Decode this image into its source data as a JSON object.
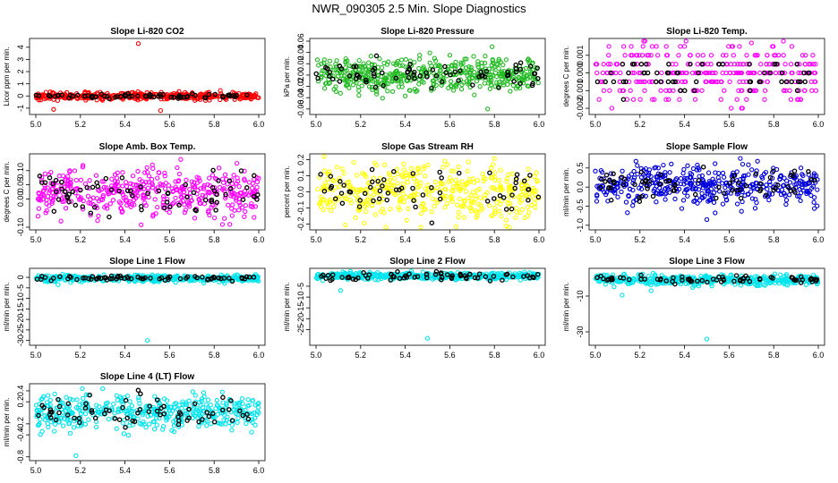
{
  "figure": {
    "title": "NWR_090305  2.5 Min. Slope Diagnostics"
  },
  "chart_data": [
    {
      "type": "scatter",
      "title": "Slope Li-820 CO2",
      "xlabel": "",
      "ylabel": "Licor ppm per min.",
      "xlim": [
        5.0,
        6.0
      ],
      "ylim": [
        -1.3,
        4.5
      ],
      "x_ticks": [
        "5.0",
        "5.2",
        "5.4",
        "5.6",
        "5.8",
        "6.0"
      ],
      "y_ticks": [
        "-1",
        "0",
        "1",
        "2",
        "3",
        "4"
      ],
      "color": "#ff0000",
      "series": [
        {
          "name": "all",
          "center": 0.0,
          "spread": 0.15,
          "count": 420
        },
        {
          "name": "black",
          "center": 0.0,
          "spread": 0.1,
          "count": 70
        }
      ],
      "outliers": [
        [
          5.46,
          4.3
        ],
        [
          5.08,
          -1.1
        ],
        [
          5.56,
          -1.2
        ]
      ]
    },
    {
      "type": "scatter",
      "title": "Slope Li-820 Pressure",
      "xlabel": "",
      "ylabel": "kPa per min.",
      "xlim": [
        5.0,
        6.0
      ],
      "ylim": [
        -0.065,
        0.06
      ],
      "x_ticks": [
        "5.0",
        "5.2",
        "5.4",
        "5.6",
        "5.8",
        "6.0"
      ],
      "y_ticks": [
        "-0.06",
        "-0.04",
        "-0.02",
        "0.00",
        "0.02",
        "0.04",
        "0.06"
      ],
      "color": "#22bb22",
      "series": [
        {
          "name": "all",
          "center": 0.0,
          "spread": 0.015,
          "count": 480
        },
        {
          "name": "black",
          "center": 0.0,
          "spread": 0.012,
          "count": 75
        }
      ],
      "outliers": [
        [
          5.77,
          -0.06
        ],
        [
          5.79,
          0.05
        ]
      ]
    },
    {
      "type": "scatter",
      "title": "Slope Li-820 Temp.",
      "xlabel": "",
      "ylabel": "degrees C per min.",
      "xlim": [
        5.0,
        6.0
      ],
      "ylim": [
        -0.0022,
        0.0018
      ],
      "x_ticks": [
        "5.0",
        "5.2",
        "5.4",
        "5.6",
        "5.8",
        "6.0"
      ],
      "y_ticks": [
        "-0.002",
        "-0.001",
        "0.000",
        "0.001"
      ],
      "color": "#ff00ff",
      "series": [
        {
          "name": "all",
          "center": 0.0,
          "spread": 0.0008,
          "count": 300,
          "quantized": 0.0005
        },
        {
          "name": "black",
          "center": 0.0,
          "spread": 0.0005,
          "count": 60,
          "quantized": 0.0005
        }
      ],
      "outliers": [
        [
          5.7,
          0.0017
        ],
        [
          5.66,
          -0.002
        ]
      ]
    },
    {
      "type": "scatter",
      "title": "Slope Amb. Box Temp.",
      "xlabel": "",
      "ylabel": "degrees C per min.",
      "xlim": [
        5.0,
        6.0
      ],
      "ylim": [
        -0.1,
        0.15
      ],
      "x_ticks": [
        "5.0",
        "5.2",
        "5.4",
        "5.6",
        "5.8",
        "6.0"
      ],
      "y_ticks": [
        "-0.10",
        "0.00",
        "0.05",
        "0.10"
      ],
      "color": "#ff00ff",
      "series": [
        {
          "name": "all",
          "center": 0.02,
          "spread": 0.04,
          "count": 420
        },
        {
          "name": "black",
          "center": 0.02,
          "spread": 0.035,
          "count": 70
        }
      ],
      "outliers": [
        [
          5.65,
          0.14
        ],
        [
          5.87,
          -0.09
        ]
      ]
    },
    {
      "type": "scatter",
      "title": "Slope Gas Stream RH",
      "xlabel": "",
      "ylabel": "percent per min.",
      "xlim": [
        5.0,
        6.0
      ],
      "ylim": [
        -0.22,
        0.22
      ],
      "x_ticks": [
        "5.0",
        "5.2",
        "5.4",
        "5.6",
        "5.8",
        "6.0"
      ],
      "y_ticks": [
        "-0.2",
        "-0.1",
        "0.0",
        "0.1",
        "0.2"
      ],
      "color": "#ffff00",
      "series": [
        {
          "name": "all",
          "center": 0.0,
          "spread": 0.09,
          "count": 400
        },
        {
          "name": "black",
          "center": 0.0,
          "spread": 0.08,
          "count": 60
        }
      ],
      "outliers": []
    },
    {
      "type": "scatter",
      "title": "Slope Sample Flow",
      "xlabel": "",
      "ylabel": "ml/min per min.",
      "xlim": [
        5.0,
        6.0
      ],
      "ylim": [
        -1.05,
        0.8
      ],
      "x_ticks": [
        "5.0",
        "5.2",
        "5.4",
        "5.6",
        "5.8",
        "6.0"
      ],
      "y_ticks": [
        "-1.0",
        "-0.5",
        "0.0",
        "0.5"
      ],
      "color": "#0000dd",
      "series": [
        {
          "name": "all",
          "center": 0.05,
          "spread": 0.25,
          "count": 420
        },
        {
          "name": "black",
          "center": 0.05,
          "spread": 0.2,
          "count": 70
        }
      ],
      "outliers": [
        [
          5.65,
          0.75
        ],
        [
          5.5,
          -0.85
        ]
      ]
    },
    {
      "type": "scatter",
      "title": "Slope Line 1 Flow",
      "xlabel": "",
      "ylabel": "ml/min per min.",
      "xlim": [
        5.0,
        6.0
      ],
      "ylim": [
        -31,
        3
      ],
      "x_ticks": [
        "5.0",
        "5.2",
        "5.4",
        "5.6",
        "5.8",
        "6.0"
      ],
      "y_ticks": [
        "-30",
        "-25",
        "-20",
        "-15",
        "-10",
        "-5",
        "0"
      ],
      "color": "#00e5ee",
      "series": [
        {
          "name": "all",
          "center": -0.5,
          "spread": 0.8,
          "count": 420
        },
        {
          "name": "black",
          "center": -0.3,
          "spread": 0.5,
          "count": 70
        }
      ],
      "outliers": [
        [
          5.5,
          -30
        ],
        [
          5.1,
          -3.5
        ]
      ]
    },
    {
      "type": "scatter",
      "title": "Slope Line 2 Flow",
      "xlabel": "",
      "ylabel": "ml/min per min.",
      "xlim": [
        5.0,
        6.0
      ],
      "ylim": [
        -31,
        2
      ],
      "x_ticks": [
        "5.0",
        "5.2",
        "5.4",
        "5.6",
        "5.8",
        "6.0"
      ],
      "y_ticks": [
        "-25",
        "-20",
        "-15",
        "-10",
        "-5"
      ],
      "color": "#00e5ee",
      "series": [
        {
          "name": "all",
          "center": -0.3,
          "spread": 0.8,
          "count": 420
        },
        {
          "name": "black",
          "center": -0.5,
          "spread": 0.9,
          "count": 70
        }
      ],
      "outliers": [
        [
          5.5,
          -29
        ],
        [
          5.11,
          -7
        ]
      ]
    },
    {
      "type": "scatter",
      "title": "Slope Line 3 Flow",
      "xlabel": "",
      "ylabel": "ml/min per min.",
      "xlim": [
        5.0,
        6.0
      ],
      "ylim": [
        -36,
        4
      ],
      "x_ticks": [
        "5.0",
        "5.2",
        "5.4",
        "5.6",
        "5.8",
        "6.0"
      ],
      "y_ticks": [
        "-30",
        "-10"
      ],
      "color": "#00e5ee",
      "series": [
        {
          "name": "all",
          "center": -1,
          "spread": 1.4,
          "count": 420
        },
        {
          "name": "black",
          "center": -1,
          "spread": 1.2,
          "count": 70
        }
      ],
      "outliers": [
        [
          5.5,
          -34
        ],
        [
          5.12,
          -9.5
        ],
        [
          5.25,
          -7
        ]
      ]
    },
    {
      "type": "scatter",
      "title": "Slope Line 4 (LT) Flow",
      "xlabel": "",
      "ylabel": "ml/min per min.",
      "xlim": [
        5.0,
        6.0
      ],
      "ylim": [
        -0.82,
        0.48
      ],
      "x_ticks": [
        "5.0",
        "5.2",
        "5.4",
        "5.6",
        "5.8",
        "6.0"
      ],
      "y_ticks": [
        "-0.8",
        "-0.4",
        "-0.2",
        "0.2",
        "0.4"
      ],
      "color": "#00e5ee",
      "series": [
        {
          "name": "all",
          "center": 0.0,
          "spread": 0.16,
          "count": 420
        },
        {
          "name": "black",
          "center": 0.0,
          "spread": 0.14,
          "count": 70
        }
      ],
      "outliers": [
        [
          5.18,
          -0.78
        ],
        [
          5.3,
          0.44
        ]
      ]
    }
  ]
}
